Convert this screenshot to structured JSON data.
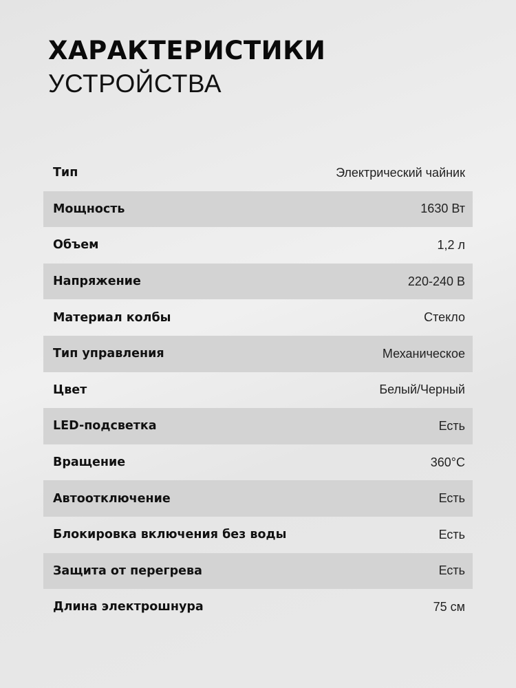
{
  "title": {
    "line1": "ХАРАКТЕРИСТИКИ",
    "line2": "УСТРОЙСТВА"
  },
  "specs": [
    {
      "label": "Тип",
      "value": "Электрический чайник"
    },
    {
      "label": "Мощность",
      "value": "1630 Вт"
    },
    {
      "label": "Объем",
      "value": "1,2 л"
    },
    {
      "label": "Напряжение",
      "value": "220-240 В"
    },
    {
      "label": "Материал колбы",
      "value": "Стекло"
    },
    {
      "label": "Тип управления",
      "value": "Механическое"
    },
    {
      "label": "Цвет",
      "value": "Белый/Черный"
    },
    {
      "label": "LED-подсветка",
      "value": "Есть"
    },
    {
      "label": "Вращение",
      "value": "360°C"
    },
    {
      "label": "Автоотключение",
      "value": "Есть"
    },
    {
      "label": "Блокировка включения без воды",
      "value": "Есть"
    },
    {
      "label": "Защита от перегрева",
      "value": "Есть"
    },
    {
      "label": "Длина электрошнура",
      "value": "75 см"
    }
  ]
}
